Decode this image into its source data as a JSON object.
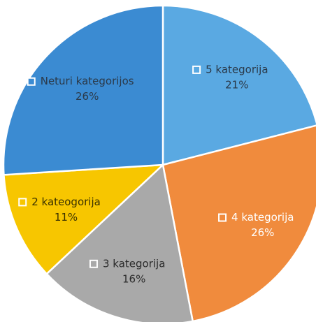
{
  "chart_data": {
    "type": "pie",
    "categories": [
      "5 kategorija",
      "4 kategorija",
      "3 kategorija",
      "2 kateogorija",
      "Neturi kategorijos"
    ],
    "values": [
      21,
      26,
      16,
      11,
      26
    ],
    "value_labels": [
      "21%",
      "26%",
      "16%",
      "11%",
      "26%"
    ],
    "colors": [
      "#5aa9e2",
      "#f08b3d",
      "#a9a9a9",
      "#f7c600",
      "#3b8bd2"
    ],
    "label_colors": [
      "#2b3a4a",
      "#ffffff",
      "#2b2b2b",
      "#3a3200",
      "#2b3a4a"
    ]
  }
}
